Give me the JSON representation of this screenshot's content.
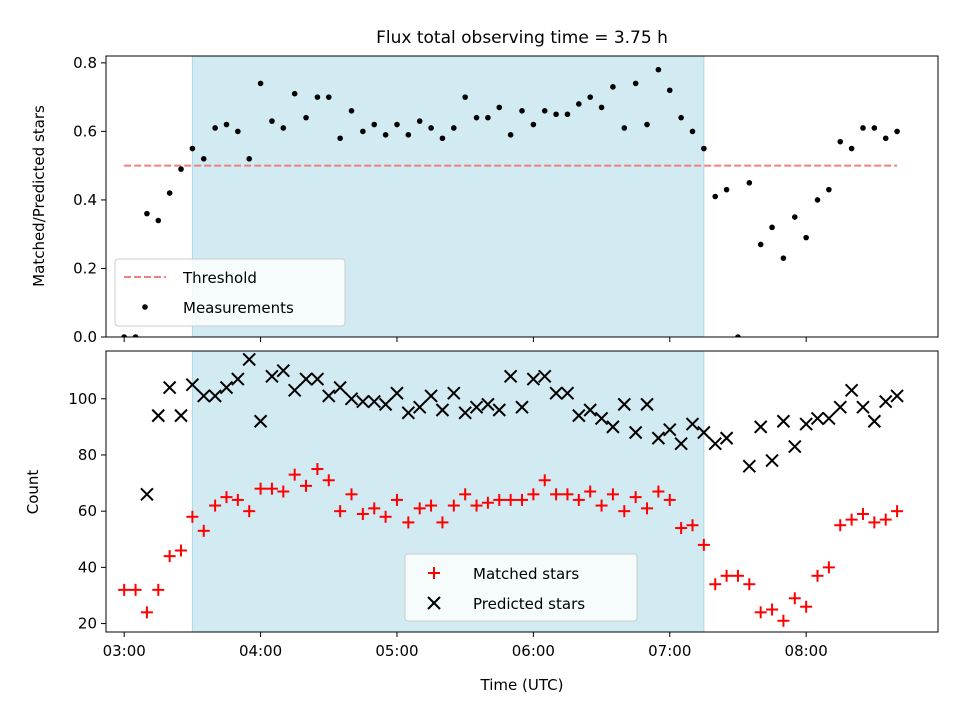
{
  "title": "Flux total observing time = 3.75 h",
  "colors": {
    "band": "#add8e6",
    "threshold": "#f08080",
    "matched": "#ff0000",
    "predicted": "#000000",
    "measurement": "#000000"
  },
  "chart_data": [
    {
      "type": "scatter",
      "panel": "top",
      "title": "Flux total observing time = 3.75 h",
      "xlabel": "",
      "ylabel": "Matched/Predicted stars",
      "xlim": [
        "02:52",
        "08:58"
      ],
      "ylim": [
        0,
        0.82
      ],
      "yticks": [
        "0.0",
        "0.2",
        "0.4",
        "0.6",
        "0.8"
      ],
      "legend": {
        "placement": "lower-left",
        "entries": [
          "Threshold",
          "Measurements"
        ]
      },
      "shaded_interval": [
        "03:30",
        "07:15"
      ],
      "threshold": {
        "name": "Threshold",
        "y": 0.5,
        "x": [
          "03:00",
          "08:40"
        ]
      },
      "series": [
        {
          "name": "Measurements",
          "x": [
            "03:00",
            "03:05",
            "03:10",
            "03:15",
            "03:20",
            "03:25",
            "03:30",
            "03:35",
            "03:40",
            "03:45",
            "03:50",
            "03:55",
            "04:00",
            "04:05",
            "04:10",
            "04:15",
            "04:20",
            "04:25",
            "04:30",
            "04:35",
            "04:40",
            "04:45",
            "04:50",
            "04:55",
            "05:00",
            "05:05",
            "05:10",
            "05:15",
            "05:20",
            "05:25",
            "05:30",
            "05:35",
            "05:40",
            "05:45",
            "05:50",
            "05:55",
            "06:00",
            "06:05",
            "06:10",
            "06:15",
            "06:20",
            "06:25",
            "06:30",
            "06:35",
            "06:40",
            "06:45",
            "06:50",
            "06:55",
            "07:00",
            "07:05",
            "07:10",
            "07:15",
            "07:20",
            "07:25",
            "07:30",
            "07:35",
            "07:40",
            "07:45",
            "07:50",
            "07:55",
            "08:00",
            "08:05",
            "08:10",
            "08:15",
            "08:20",
            "08:25",
            "08:30",
            "08:35",
            "08:40"
          ],
          "y": [
            0.0,
            0.0,
            0.36,
            0.34,
            0.42,
            0.49,
            0.55,
            0.52,
            0.61,
            0.62,
            0.6,
            0.52,
            0.74,
            0.63,
            0.61,
            0.71,
            0.64,
            0.7,
            0.7,
            0.58,
            0.66,
            0.6,
            0.62,
            0.59,
            0.62,
            0.59,
            0.63,
            0.61,
            0.58,
            0.61,
            0.7,
            0.64,
            0.64,
            0.67,
            0.59,
            0.66,
            0.62,
            0.66,
            0.65,
            0.65,
            0.68,
            0.7,
            0.67,
            0.73,
            0.61,
            0.74,
            0.62,
            0.78,
            0.72,
            0.64,
            0.6,
            0.55,
            0.41,
            0.43,
            0.0,
            0.45,
            0.27,
            0.32,
            0.23,
            0.35,
            0.29,
            0.4,
            0.43,
            0.57,
            0.55,
            0.61,
            0.61,
            0.58,
            0.6
          ]
        }
      ]
    },
    {
      "type": "scatter",
      "panel": "bottom",
      "xlabel": "Time (UTC)",
      "ylabel": "Count",
      "xlim": [
        "02:52",
        "08:58"
      ],
      "ylim": [
        17,
        117
      ],
      "xticks": [
        "03:00",
        "04:00",
        "05:00",
        "06:00",
        "07:00",
        "08:00"
      ],
      "yticks": [
        "20",
        "40",
        "60",
        "80",
        "100"
      ],
      "legend": {
        "placement": "lower-center",
        "entries": [
          "Matched stars",
          "Predicted stars"
        ]
      },
      "shaded_interval": [
        "03:30",
        "07:15"
      ],
      "x": [
        "03:00",
        "03:05",
        "03:10",
        "03:15",
        "03:20",
        "03:25",
        "03:30",
        "03:35",
        "03:40",
        "03:45",
        "03:50",
        "03:55",
        "04:00",
        "04:05",
        "04:10",
        "04:15",
        "04:20",
        "04:25",
        "04:30",
        "04:35",
        "04:40",
        "04:45",
        "04:50",
        "04:55",
        "05:00",
        "05:05",
        "05:10",
        "05:15",
        "05:20",
        "05:25",
        "05:30",
        "05:35",
        "05:40",
        "05:45",
        "05:50",
        "05:55",
        "06:00",
        "06:05",
        "06:10",
        "06:15",
        "06:20",
        "06:25",
        "06:30",
        "06:35",
        "06:40",
        "06:45",
        "06:50",
        "06:55",
        "07:00",
        "07:05",
        "07:10",
        "07:15",
        "07:20",
        "07:25",
        "07:30",
        "07:35",
        "07:40",
        "07:45",
        "07:50",
        "07:55",
        "08:00",
        "08:05",
        "08:10",
        "08:15",
        "08:20",
        "08:25",
        "08:30",
        "08:35",
        "08:40"
      ],
      "series": [
        {
          "name": "Matched stars",
          "marker": "+",
          "values": [
            32,
            32,
            24,
            32,
            44,
            46,
            58,
            53,
            62,
            65,
            64,
            60,
            68,
            68,
            67,
            73,
            69,
            75,
            71,
            60,
            66,
            59,
            61,
            58,
            64,
            56,
            61,
            62,
            56,
            62,
            66,
            62,
            63,
            64,
            64,
            64,
            66,
            71,
            66,
            66,
            64,
            67,
            62,
            66,
            60,
            65,
            61,
            67,
            64,
            54,
            55,
            48,
            34,
            37,
            37,
            34,
            24,
            25,
            21,
            29,
            26,
            37,
            40,
            55,
            57,
            59,
            56,
            57,
            60
          ]
        },
        {
          "name": "Predicted stars",
          "marker": "x",
          "values": [
            null,
            null,
            66,
            94,
            104,
            94,
            105,
            101,
            101,
            104,
            107,
            114,
            92,
            108,
            110,
            103,
            107,
            107,
            101,
            104,
            100,
            99,
            99,
            98,
            102,
            95,
            97,
            101,
            96,
            102,
            95,
            97,
            98,
            96,
            108,
            97,
            107,
            108,
            102,
            102,
            94,
            96,
            93,
            90,
            98,
            88,
            98,
            86,
            89,
            84,
            91,
            88,
            84,
            86,
            null,
            76,
            90,
            78,
            92,
            83,
            91,
            93,
            93,
            97,
            103,
            97,
            92,
            99,
            101
          ]
        }
      ]
    }
  ]
}
